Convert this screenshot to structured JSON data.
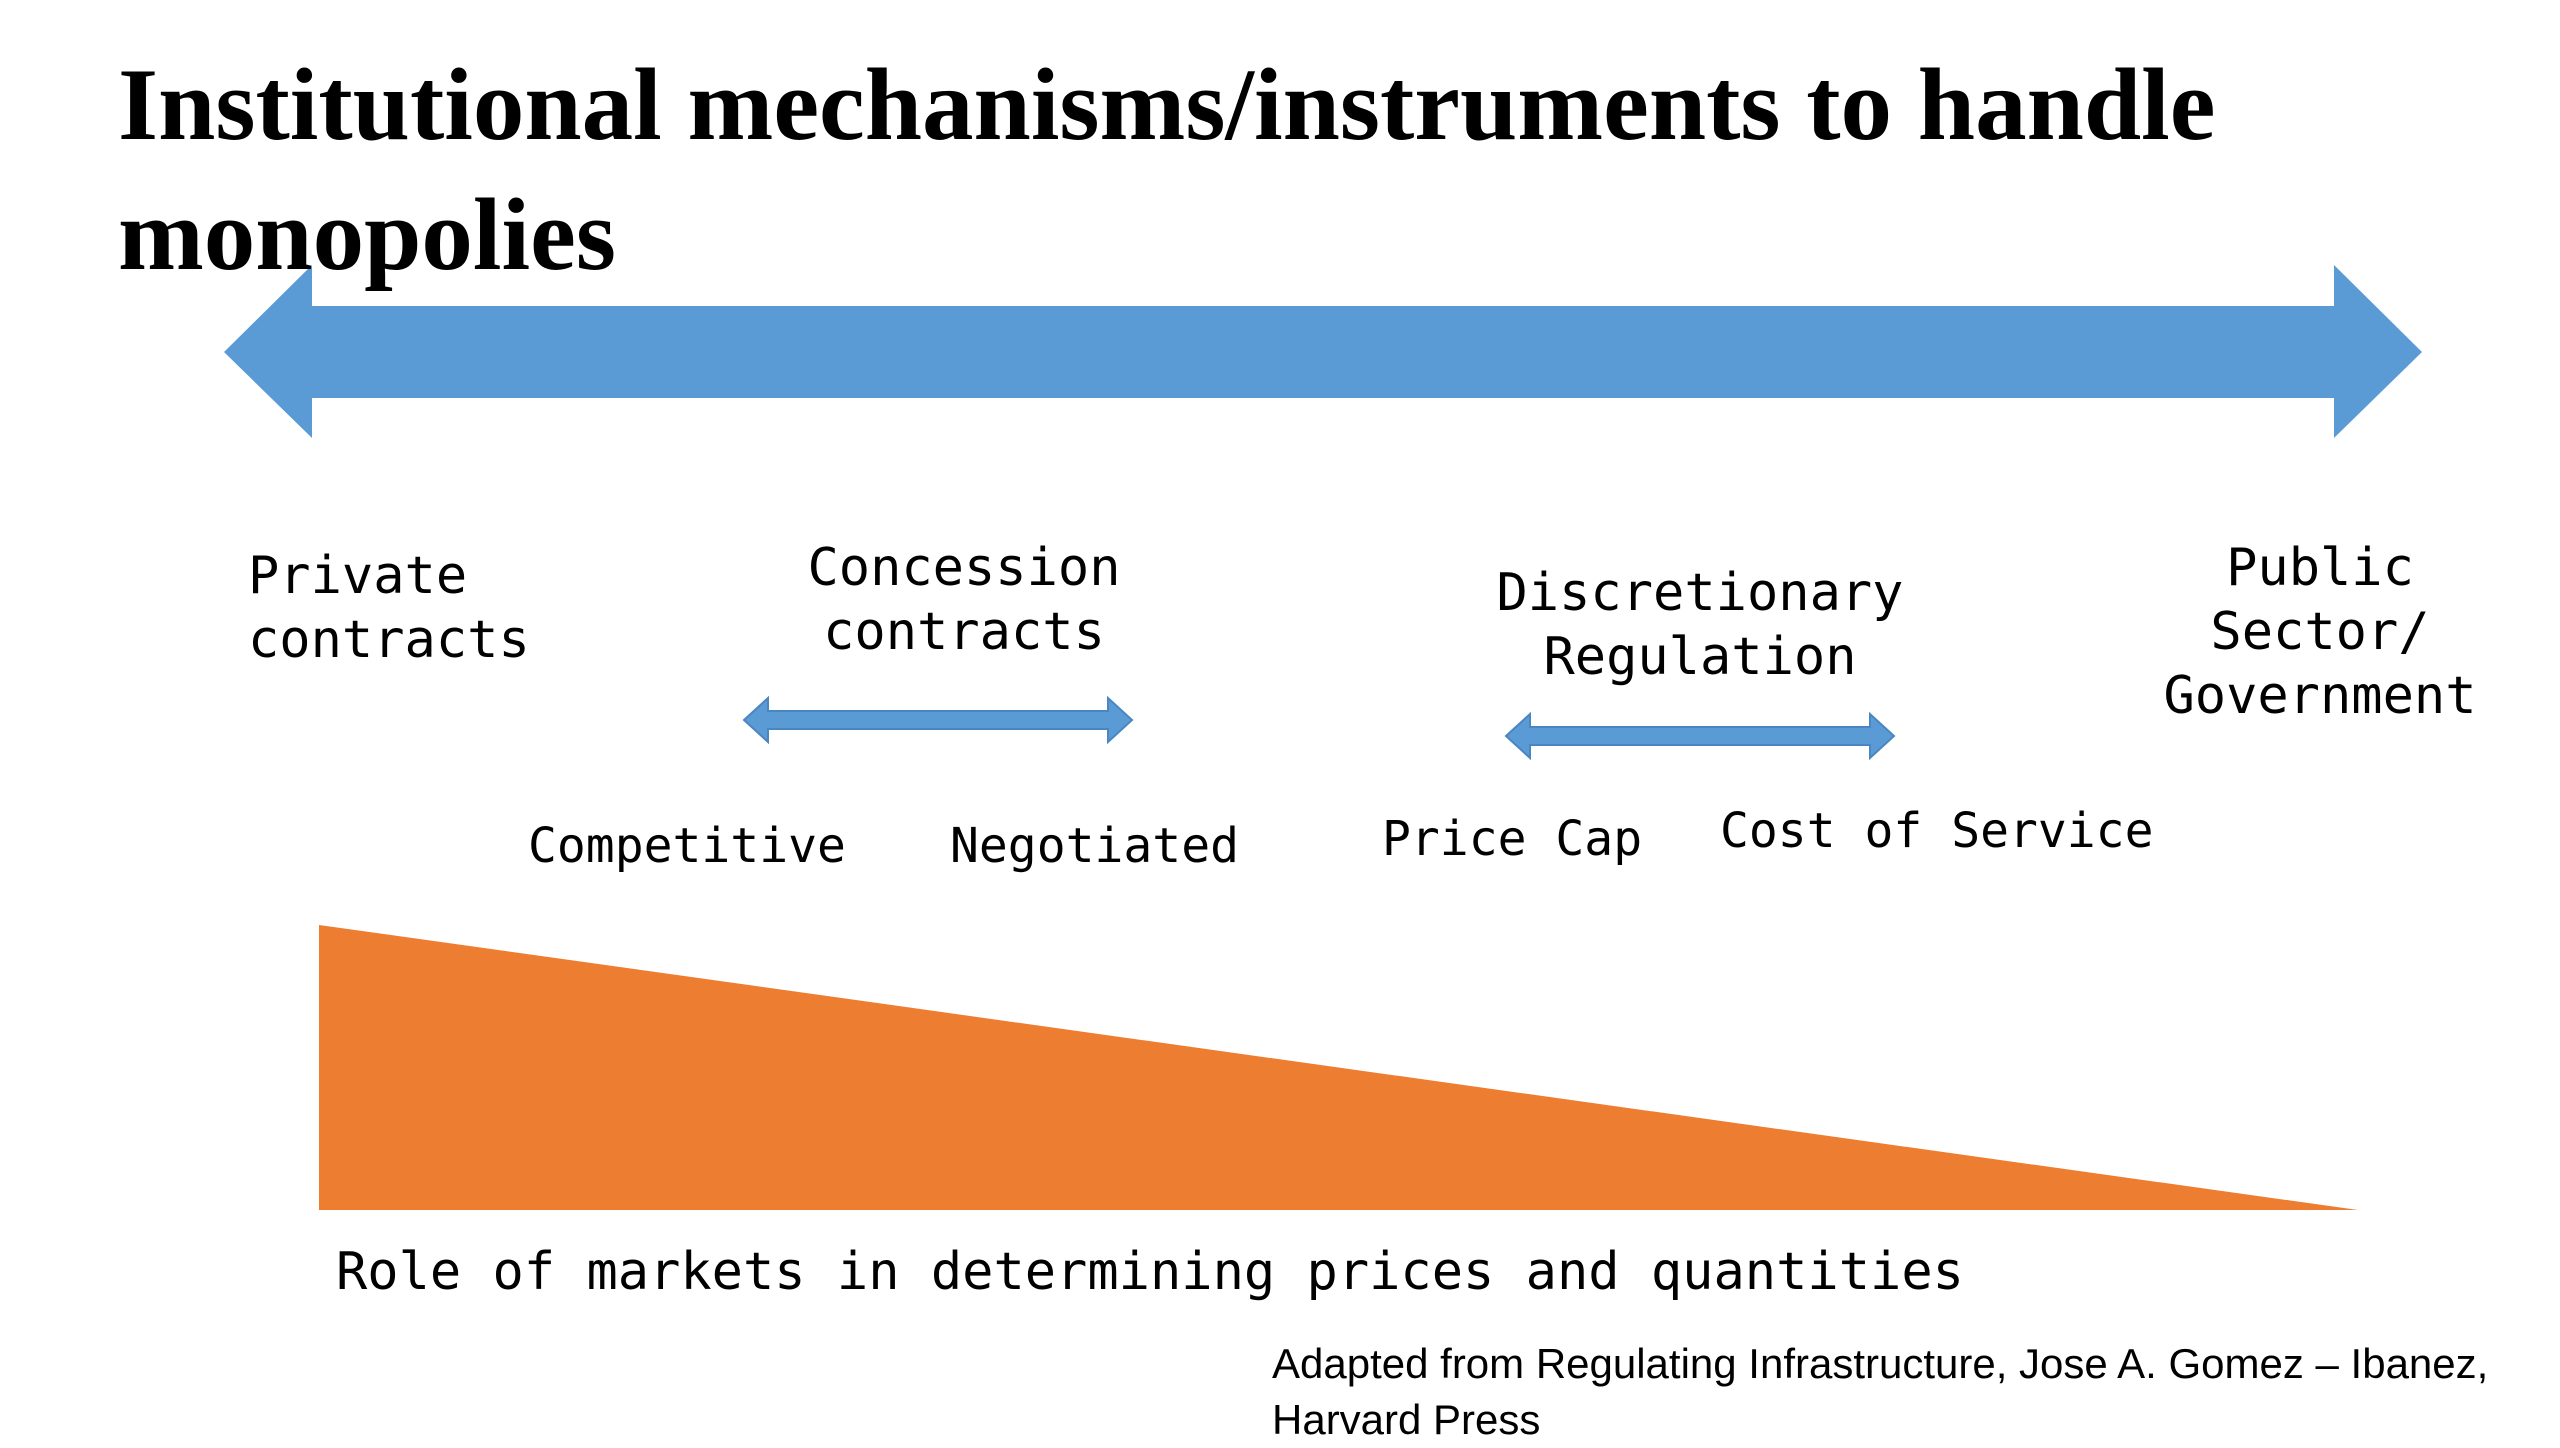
{
  "title": "Institutional mechanisms/instruments to handle monopolies",
  "colors": {
    "arrow_blue": "#5b9bd5",
    "triangle_orange": "#ed7d31",
    "text": "#000000",
    "background": "#ffffff"
  },
  "spectrum": {
    "left_label": "Private\ncontracts",
    "concession_label": "Concession\ncontracts",
    "discretionary_label": "Discretionary\nRegulation",
    "right_label": "Public\nSector/\nGovernment"
  },
  "concession_range": {
    "left": "Competitive",
    "right": "Negotiated"
  },
  "regulation_range": {
    "left": "Price Cap",
    "right": "Cost of Service"
  },
  "market_role_label": "Role of markets in determining prices and quantities",
  "citation": "Adapted from Regulating Infrastructure, Jose A. Gomez – Ibanez, Harvard Press"
}
